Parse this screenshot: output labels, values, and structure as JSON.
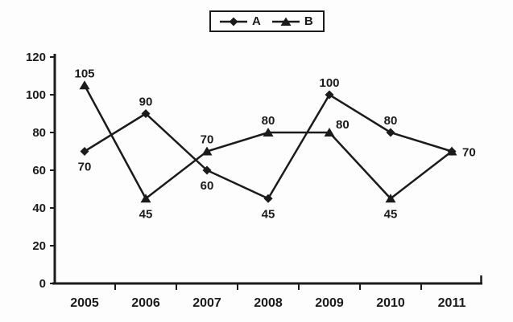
{
  "chart_data": {
    "type": "line",
    "title": "",
    "xlabel": "",
    "ylabel": "",
    "categories": [
      "2005",
      "2006",
      "2007",
      "2008",
      "2009",
      "2010",
      "2011"
    ],
    "series": [
      {
        "name": "A",
        "marker": "diamond",
        "values": [
          70,
          90,
          60,
          45,
          100,
          80,
          70
        ],
        "label_positions": [
          "below",
          "above",
          "below",
          "below",
          "above",
          "above",
          "right"
        ]
      },
      {
        "name": "B",
        "marker": "triangle",
        "values": [
          105,
          45,
          70,
          80,
          80,
          45,
          70
        ],
        "label_positions": [
          "above",
          "below",
          "above",
          "above",
          "right-up",
          "below",
          "none"
        ]
      }
    ],
    "yticks": [
      0,
      20,
      40,
      60,
      80,
      100,
      120
    ],
    "ylim": [
      0,
      120
    ],
    "grid": false,
    "legend_position": "top-center",
    "line_color": "#1b1b1b",
    "text_color": "#1b1b1b",
    "background_color": "#fdfdfd"
  }
}
